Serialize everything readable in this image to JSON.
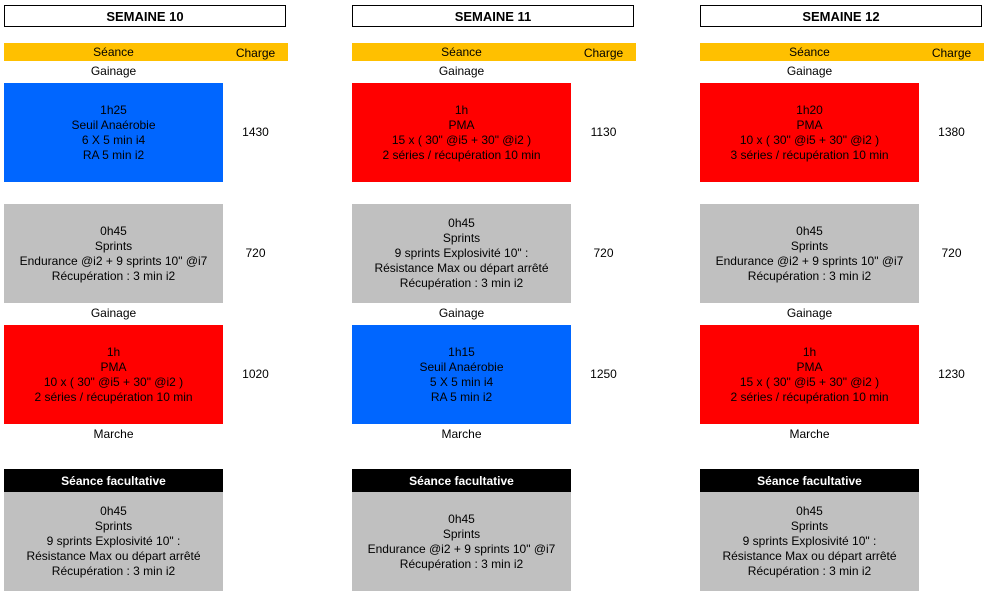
{
  "colors": {
    "blue": "#0066ff",
    "red": "#ff0000",
    "grey": "#c0c0c0",
    "header": "#ffc000",
    "black": "#000000"
  },
  "weeks": [
    {
      "title": "SEMAINE 10",
      "seance_header": "Séance",
      "charge_header": "Charge",
      "label1": "Gainage",
      "session1": {
        "color": "blue",
        "lines": [
          "1h25",
          "Seuil Anaérobie",
          "6 X 5 min i4",
          "RA 5 min i2"
        ],
        "charge": "1430"
      },
      "session2": {
        "color": "grey",
        "lines": [
          "0h45",
          "Sprints",
          "Endurance @i2 + 9 sprints 10\" @i7",
          "Récupération : 3 min i2"
        ],
        "charge": "720"
      },
      "label2": "Gainage",
      "session3": {
        "color": "red",
        "lines": [
          "1h",
          "PMA",
          "10 x ( 30\" @i5 + 30\" @i2 )",
          "2 séries / récupération 10 min"
        ],
        "charge": "1020"
      },
      "label3": "Marche",
      "optional_header": "Séance facultative",
      "optional": {
        "color": "grey",
        "lines": [
          "0h45",
          "Sprints",
          "9 sprints Explosivité 10\" :",
          "Résistance Max ou départ arrêté",
          "Récupération : 3 min i2"
        ]
      }
    },
    {
      "title": "SEMAINE 11",
      "seance_header": "Séance",
      "charge_header": "Charge",
      "label1": "Gainage",
      "session1": {
        "color": "red",
        "lines": [
          "1h",
          "PMA",
          "15 x ( 30\" @i5 + 30\" @i2 )",
          "2 séries / récupération 10 min"
        ],
        "charge": "1130"
      },
      "session2": {
        "color": "grey",
        "lines": [
          "0h45",
          "Sprints",
          "9 sprints Explosivité 10\" :",
          "Résistance Max ou départ arrêté",
          "Récupération : 3 min i2"
        ],
        "charge": "720"
      },
      "label2": "Gainage",
      "session3": {
        "color": "blue",
        "lines": [
          "1h15",
          "Seuil Anaérobie",
          "5 X 5 min i4",
          "RA 5 min i2"
        ],
        "charge": "1250"
      },
      "label3": "Marche",
      "optional_header": "Séance facultative",
      "optional": {
        "color": "grey",
        "lines": [
          "0h45",
          "Sprints",
          "Endurance @i2 + 9 sprints 10\" @i7",
          "Récupération : 3 min i2"
        ]
      }
    },
    {
      "title": "SEMAINE 12",
      "seance_header": "Séance",
      "charge_header": "Charge",
      "label1": "Gainage",
      "session1": {
        "color": "red",
        "lines": [
          "1h20",
          "PMA",
          "10 x ( 30\" @i5 + 30\" @i2 )",
          "3 séries / récupération 10 min"
        ],
        "charge": "1380"
      },
      "session2": {
        "color": "grey",
        "lines": [
          "0h45",
          "Sprints",
          "Endurance @i2 + 9 sprints 10\" @i7",
          "Récupération : 3 min i2"
        ],
        "charge": "720"
      },
      "label2": "Gainage",
      "session3": {
        "color": "red",
        "lines": [
          "1h",
          "PMA",
          "15 x ( 30\" @i5 + 30\" @i2 )",
          "2 séries / récupération 10 min"
        ],
        "charge": "1230"
      },
      "label3": "Marche",
      "optional_header": "Séance facultative",
      "optional": {
        "color": "grey",
        "lines": [
          "0h45",
          "Sprints",
          "9 sprints Explosivité 10\" :",
          "Résistance Max ou départ arrêté",
          "Récupération : 3 min i2"
        ]
      }
    }
  ]
}
